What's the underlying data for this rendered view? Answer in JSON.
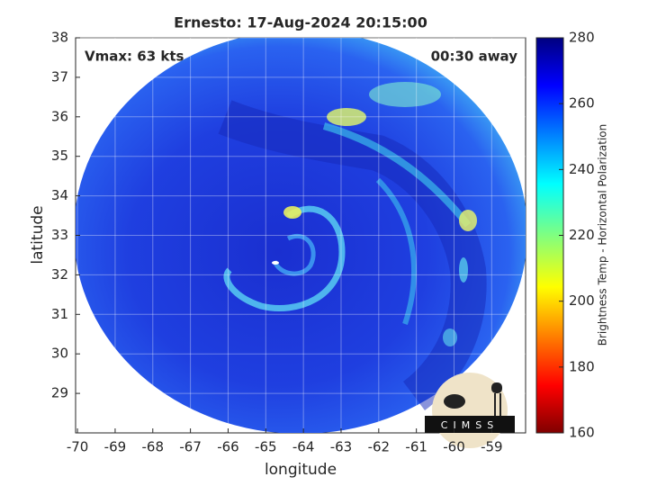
{
  "chart_data": {
    "type": "image",
    "title": "Ernesto: 17-Aug-2024 20:15:00",
    "annotations": [
      "Vmax: 63 kts",
      "00:30 away"
    ],
    "xlabel": "longitude",
    "ylabel": "latitude",
    "xlim": [
      -70.05,
      -58.1
    ],
    "ylim": [
      28,
      38
    ],
    "xticks": [
      -70,
      -69,
      -68,
      -67,
      -66,
      -65,
      -64,
      -63,
      -62,
      -61,
      -60,
      -59
    ],
    "yticks": [
      29,
      30,
      31,
      32,
      33,
      34,
      35,
      36,
      37,
      38
    ],
    "grid": true,
    "colorbar": {
      "label": "Brightness Temp - Horizontal Polarization",
      "lim": [
        160,
        280
      ],
      "ticks": [
        160,
        180,
        200,
        220,
        240,
        260,
        280
      ]
    },
    "logo": "CIMSS"
  }
}
